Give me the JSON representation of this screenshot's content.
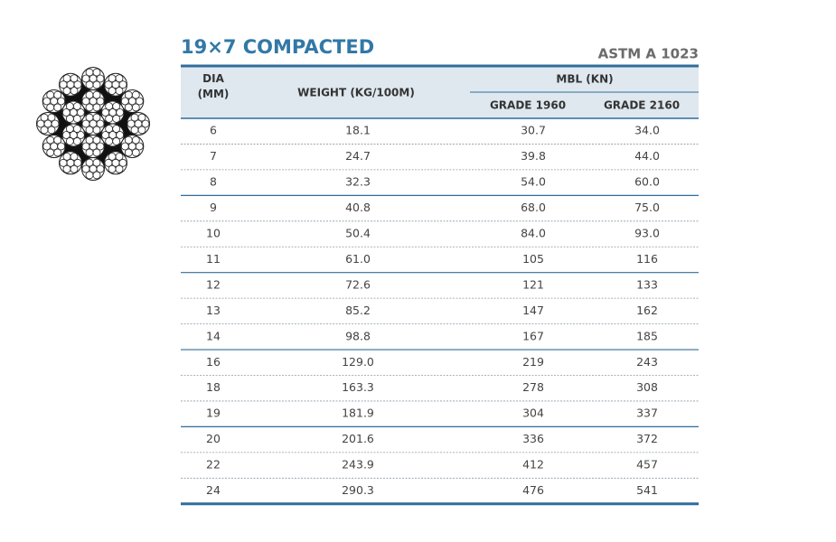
{
  "header": {
    "title": "19×7 COMPACTED",
    "standard": "ASTM A 1023"
  },
  "table": {
    "columns": {
      "dia": "DIA\n(MM)",
      "weight": "WEIGHT (KG/100M)",
      "mbl": "MBL (KN)",
      "grade1": "GRADE 1960",
      "grade2": "GRADE 2160"
    },
    "rows": [
      [
        "6",
        "18.1",
        "30.7",
        "34.0"
      ],
      [
        "7",
        "24.7",
        "39.8",
        "44.0"
      ],
      [
        "8",
        "32.3",
        "54.0",
        "60.0"
      ],
      [
        "9",
        "40.8",
        "68.0",
        "75.0"
      ],
      [
        "10",
        "50.4",
        "84.0",
        "93.0"
      ],
      [
        "11",
        "61.0",
        "105",
        "116"
      ],
      [
        "12",
        "72.6",
        "121",
        "133"
      ],
      [
        "13",
        "85.2",
        "147",
        "162"
      ],
      [
        "14",
        "98.8",
        "167",
        "185"
      ],
      [
        "16",
        "129.0",
        "219",
        "243"
      ],
      [
        "18",
        "163.3",
        "278",
        "308"
      ],
      [
        "19",
        "181.9",
        "304",
        "337"
      ],
      [
        "20",
        "201.6",
        "336",
        "372"
      ],
      [
        "22",
        "243.9",
        "412",
        "457"
      ],
      [
        "24",
        "290.3",
        "476",
        "541"
      ]
    ]
  }
}
